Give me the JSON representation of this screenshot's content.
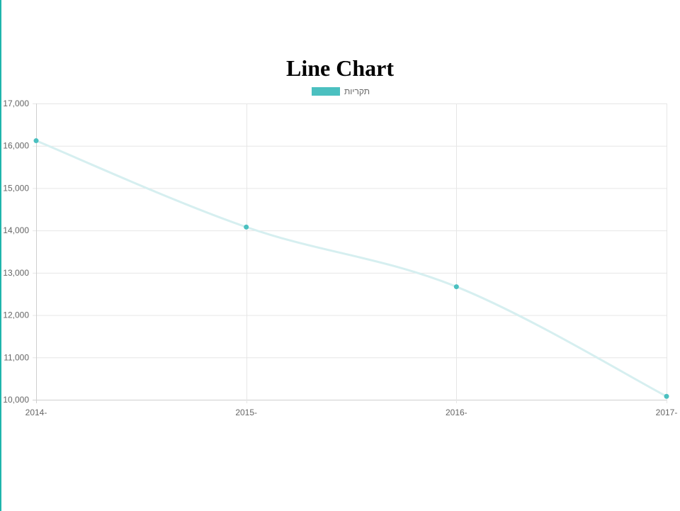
{
  "page": {
    "title": "Line Chart"
  },
  "chart_data": {
    "type": "line",
    "title": "Line Chart",
    "xlabel": "",
    "ylabel": "",
    "categories": [
      "2014-",
      "2015-",
      "2016-",
      "2017-"
    ],
    "series": [
      {
        "name": "תקריות",
        "values": [
          16120,
          14080,
          12670,
          10080
        ],
        "line_color": "#d6eff0",
        "point_color": "#4bc0c0"
      }
    ],
    "ylim": [
      10000,
      17000
    ],
    "yticks": [
      10000,
      11000,
      12000,
      13000,
      14000,
      15000,
      16000,
      17000
    ],
    "ytick_labels": [
      "10,000",
      "11,000",
      "12,000",
      "13,000",
      "14,000",
      "15,000",
      "16,000",
      "17,000"
    ],
    "grid": true,
    "legend_position": "top",
    "legend_swatch_color": "#4bc0c0",
    "accent_color": "#1fb5ac"
  }
}
